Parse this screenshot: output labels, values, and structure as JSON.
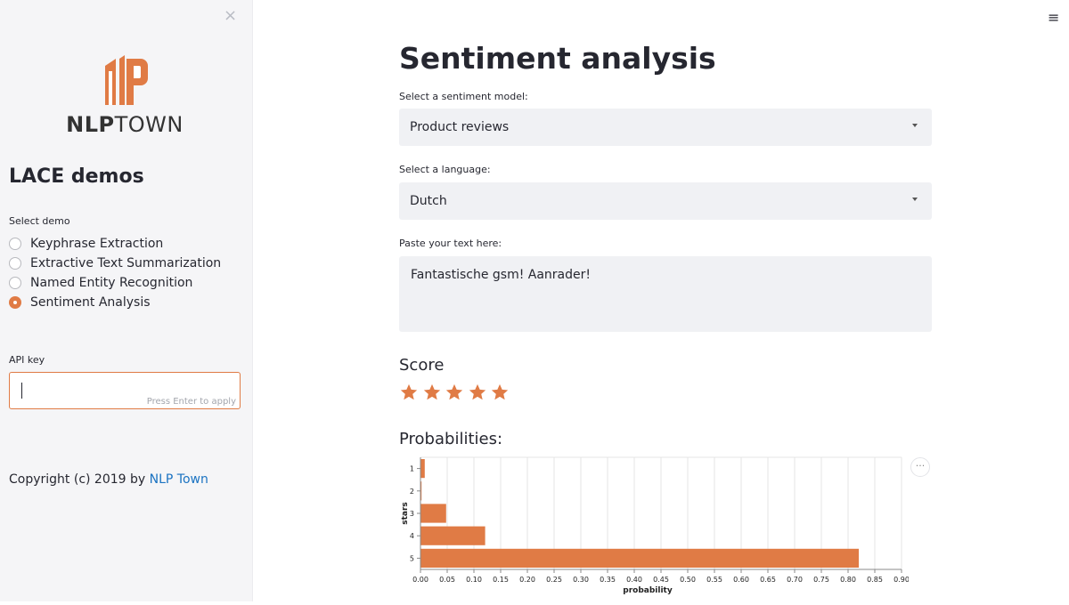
{
  "sidebar": {
    "close_icon": "×",
    "logo": {
      "text_bold": "NLP",
      "text_light": "TOWN",
      "color": "#e07b45"
    },
    "title": "LACE demos",
    "select_demo_label": "Select demo",
    "demos": [
      {
        "label": "Keyphrase Extraction",
        "selected": false
      },
      {
        "label": "Extractive Text Summarization",
        "selected": false
      },
      {
        "label": "Named Entity Recognition",
        "selected": false
      },
      {
        "label": "Sentiment Analysis",
        "selected": true
      }
    ],
    "api_key_label": "API key",
    "api_key_value": "",
    "api_key_hint": "Press Enter to apply",
    "copyright_prefix": "Copyright (c) 2019 by",
    "copyright_link": "NLP Town"
  },
  "header": {
    "menu_icon": "≡"
  },
  "main": {
    "title": "Sentiment analysis",
    "model_label": "Select a sentiment model:",
    "model_value": "Product reviews",
    "language_label": "Select a language:",
    "language_value": "Dutch",
    "text_label": "Paste your text here:",
    "text_value": "Fantastische gsm! Aanrader!",
    "score_heading": "Score",
    "score_stars": 5,
    "probabilities_heading": "Probabilities:",
    "chart_menu_icon": "···"
  },
  "accent_color": "#e07b45",
  "link_color": "#1b73c2",
  "chart_data": {
    "type": "bar",
    "orientation": "horizontal",
    "categories": [
      "1",
      "2",
      "3",
      "4",
      "5"
    ],
    "values": [
      0.008,
      0.002,
      0.048,
      0.121,
      0.82
    ],
    "xlabel": "probability",
    "ylabel": "stars",
    "xlim": [
      0,
      0.9
    ],
    "xticks": [
      "0.00",
      "0.05",
      "0.10",
      "0.15",
      "0.20",
      "0.25",
      "0.30",
      "0.35",
      "0.40",
      "0.45",
      "0.50",
      "0.55",
      "0.60",
      "0.65",
      "0.70",
      "0.75",
      "0.80",
      "0.85",
      "0.90"
    ],
    "grid": true,
    "color": "#e07b45"
  }
}
